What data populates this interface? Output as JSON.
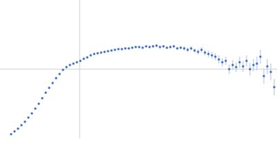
{
  "chart_data": {
    "type": "scatter",
    "x": [
      16,
      21,
      26,
      31,
      36,
      41,
      46,
      51,
      56,
      61,
      66,
      71,
      76,
      81,
      86,
      91,
      96,
      101,
      106,
      111,
      116,
      121,
      126,
      131,
      136,
      141,
      146,
      151,
      156,
      161,
      166,
      171,
      176,
      181,
      186,
      191,
      196,
      201,
      206,
      211,
      216,
      221,
      226,
      231,
      236,
      241,
      246,
      251,
      256,
      261,
      266,
      271,
      276,
      281,
      286,
      291,
      296,
      301,
      306,
      311,
      316,
      321,
      326,
      331,
      336,
      341,
      346,
      351,
      356,
      361,
      366,
      371,
      376,
      381,
      386,
      391,
      396
    ],
    "values": [
      6,
      10,
      14,
      19,
      24,
      30,
      36,
      43,
      50,
      58,
      66,
      73,
      80,
      87,
      93,
      99,
      103,
      106,
      108,
      110,
      112,
      115,
      117,
      120,
      122,
      123,
      124,
      125,
      126,
      127,
      128,
      129,
      129,
      130,
      130,
      131,
      132,
      132,
      131,
      133,
      132,
      133,
      134,
      132,
      133,
      131,
      132,
      133,
      130,
      131,
      130,
      128,
      130,
      127,
      125,
      128,
      124,
      122,
      120,
      118,
      114,
      110,
      112,
      100,
      106,
      103,
      110,
      104,
      112,
      100,
      106,
      108,
      118,
      90,
      104,
      96,
      74
    ],
    "errors": [
      1,
      1,
      1,
      1,
      1,
      1,
      1,
      1,
      1,
      1,
      1,
      1,
      1,
      1,
      1,
      1,
      1,
      1,
      1,
      1,
      1,
      1,
      1,
      1,
      1,
      1,
      1,
      1,
      1,
      1,
      1,
      1,
      1,
      1,
      1,
      1,
      1,
      1,
      1,
      1,
      2,
      2,
      2,
      2,
      2,
      2,
      2,
      2,
      2,
      2,
      3,
      3,
      3,
      3,
      4,
      4,
      4,
      5,
      5,
      5,
      6,
      6,
      6,
      7,
      7,
      7,
      8,
      8,
      8,
      9,
      9,
      10,
      10,
      11,
      11,
      12,
      12
    ],
    "color": "#3c6cc0",
    "error_color": "#a9bfe6",
    "xlim": [
      0,
      400
    ],
    "ylim": [
      0,
      200
    ],
    "reference_lines": {
      "x": 115,
      "y": 100
    },
    "reference_color": "#cccccc"
  }
}
